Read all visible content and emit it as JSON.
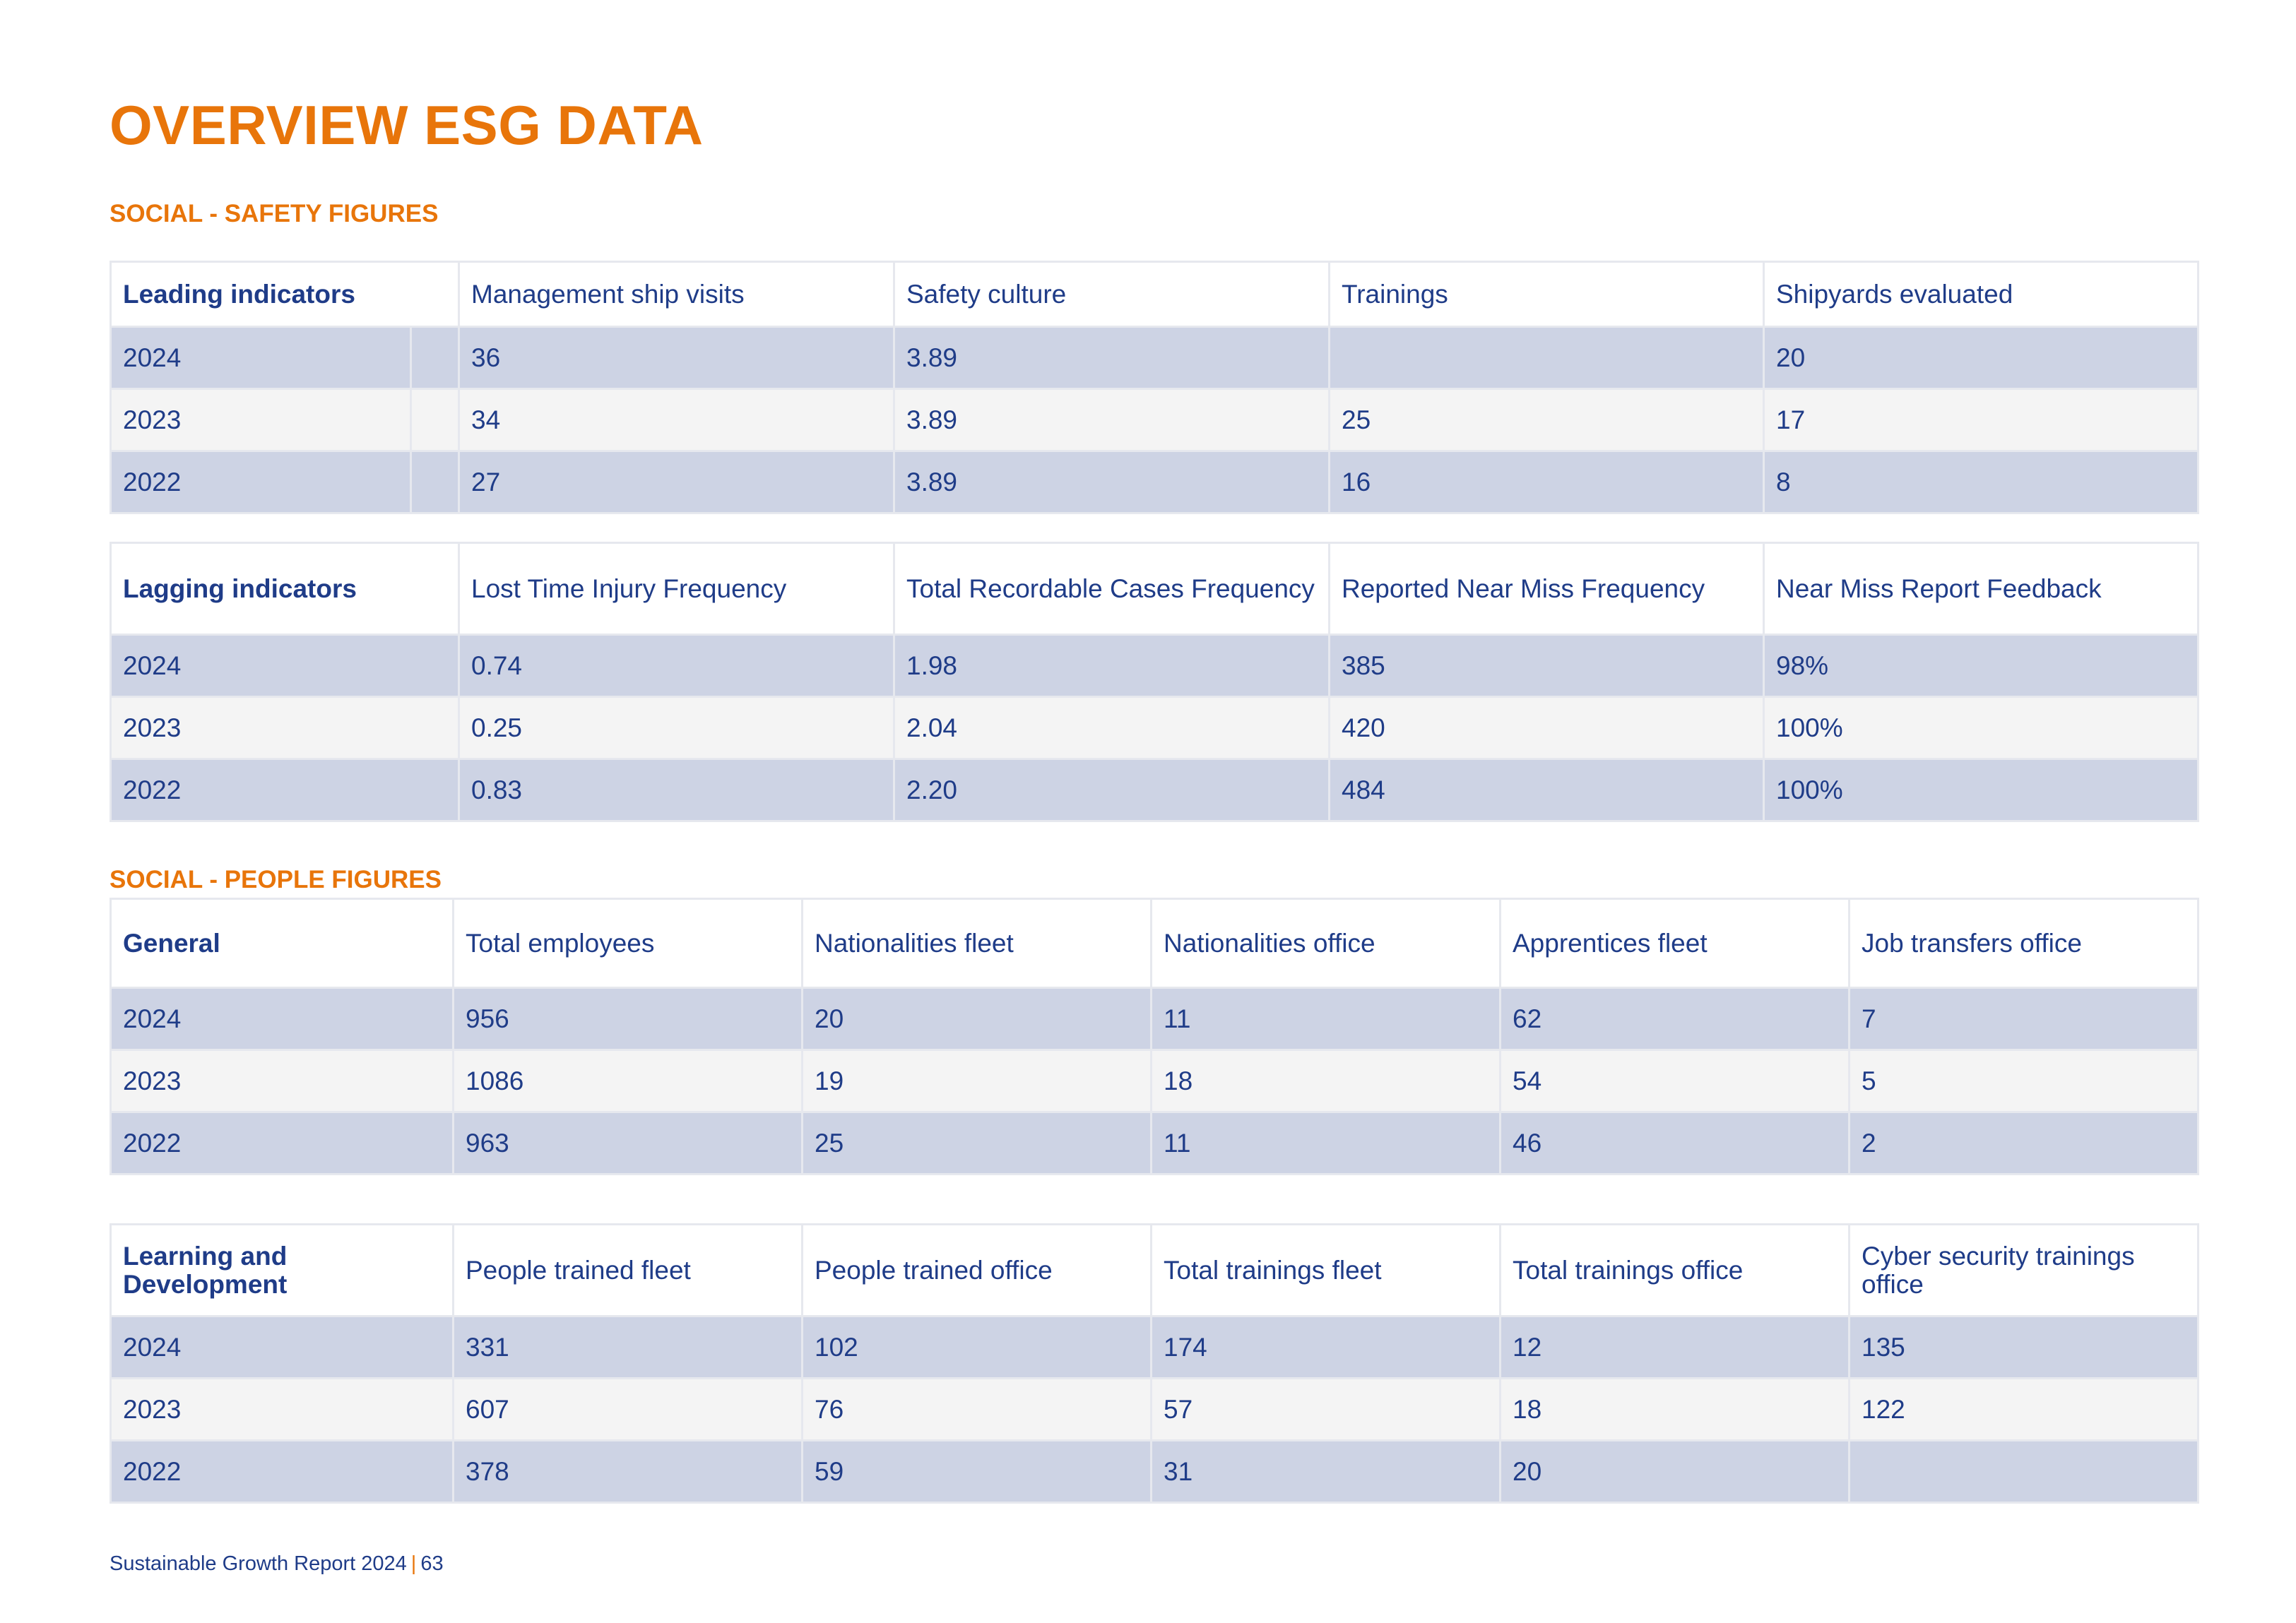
{
  "page": {
    "title": "OVERVIEW ESG DATA"
  },
  "safety": {
    "section_title": "SOCIAL - SAFETY FIGURES",
    "leading": {
      "label": "Leading indicators",
      "headers": [
        "Management ship visits",
        "Safety culture",
        "Trainings",
        "Shipyards evaluated"
      ],
      "rows": [
        {
          "year": "2024",
          "values": [
            "36",
            "3.89",
            "",
            "20"
          ]
        },
        {
          "year": "2023",
          "values": [
            "34",
            "3.89",
            "25",
            "17"
          ]
        },
        {
          "year": "2022",
          "values": [
            "27",
            "3.89",
            "16",
            "8"
          ]
        }
      ]
    },
    "lagging": {
      "label": "Lagging indicators",
      "headers": [
        "Lost Time Injury Frequency",
        "Total Recordable Cases Frequency",
        "Reported Near Miss Frequency",
        "Near Miss Report Feedback"
      ],
      "rows": [
        {
          "year": "2024",
          "values": [
            "0.74",
            "1.98",
            "385",
            "98%"
          ]
        },
        {
          "year": "2023",
          "values": [
            "0.25",
            "2.04",
            "420",
            "100%"
          ]
        },
        {
          "year": "2022",
          "values": [
            "0.83",
            "2.20",
            "484",
            "100%"
          ]
        }
      ]
    }
  },
  "people": {
    "section_title": "SOCIAL - PEOPLE  FIGURES",
    "general": {
      "label": "General",
      "headers": [
        "Total employees",
        "Nationalities fleet",
        "Nationalities office",
        "Apprentices fleet",
        "Job transfers office"
      ],
      "rows": [
        {
          "year": "2024",
          "values": [
            "956",
            "20",
            "11",
            "62",
            "7"
          ]
        },
        {
          "year": "2023",
          "values": [
            "1086",
            "19",
            "18",
            "54",
            "5"
          ]
        },
        {
          "year": "2022",
          "values": [
            "963",
            "25",
            "11",
            "46",
            "2"
          ]
        }
      ]
    },
    "learning": {
      "label": "Learning and Development",
      "headers": [
        "People trained fleet",
        "People trained office",
        "Total trainings fleet",
        "Total trainings office",
        "Cyber security trainings office"
      ],
      "rows": [
        {
          "year": "2024",
          "values": [
            "331",
            "102",
            "174",
            "12",
            "135"
          ]
        },
        {
          "year": "2023",
          "values": [
            "607",
            "76",
            "57",
            "18",
            "122"
          ]
        },
        {
          "year": "2022",
          "values": [
            "378",
            "59",
            "31",
            "20",
            ""
          ]
        }
      ]
    }
  },
  "footer": {
    "report": "Sustainable Growth Report 2024",
    "separator": "|",
    "page_number": "63"
  }
}
